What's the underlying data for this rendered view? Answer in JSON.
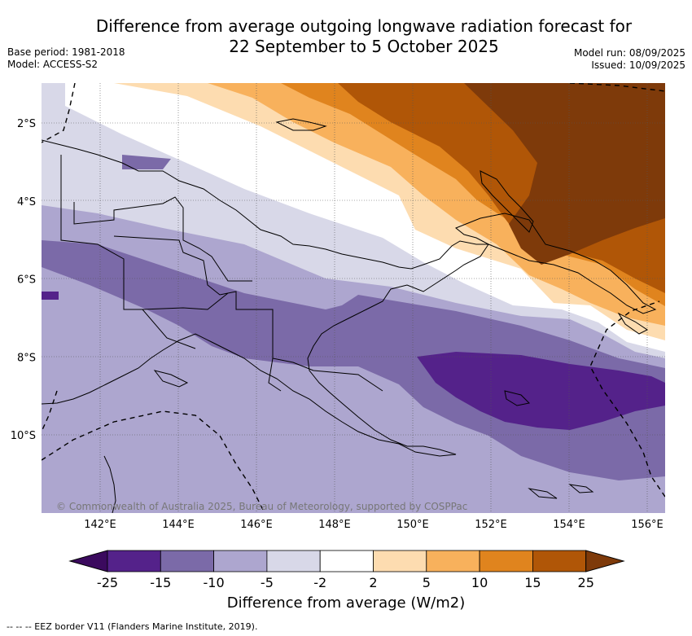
{
  "header": {
    "title_line1": "Difference from average outgoing longwave radiation forecast for",
    "title_line2": "22 September to 5 October 2025",
    "base_period": "Base period: 1981-2018",
    "model": "Model: ACCESS-S2",
    "model_run": "Model run: 08/09/2025",
    "issued": "Issued: 10/09/2025"
  },
  "map": {
    "lon_ticks": [
      "142°E",
      "144°E",
      "146°E",
      "148°E",
      "150°E",
      "152°E",
      "154°E",
      "156°E"
    ],
    "lat_ticks": [
      "2°S",
      "4°S",
      "6°S",
      "8°S",
      "10°S"
    ],
    "copyright": "© Commonwealth of Australia 2025, Bureau of Meteorology, supported by COSPPac"
  },
  "legend": {
    "tick_labels": [
      "-25",
      "-15",
      "-10",
      "-5",
      "-2",
      "2",
      "5",
      "10",
      "15",
      "25"
    ],
    "colors": [
      "#3b0a5e",
      "#54228a",
      "#7b6aa8",
      "#ada6cf",
      "#d8d8e8",
      "#ffffff",
      "#fddcb0",
      "#f8b15c",
      "#e0841e",
      "#b05607",
      "#7e3a0a"
    ],
    "label": "Difference from average (W/m2)"
  },
  "footnote": "--  --  -- EEZ border V11 (Flanders Marine Institute, 2019)."
}
